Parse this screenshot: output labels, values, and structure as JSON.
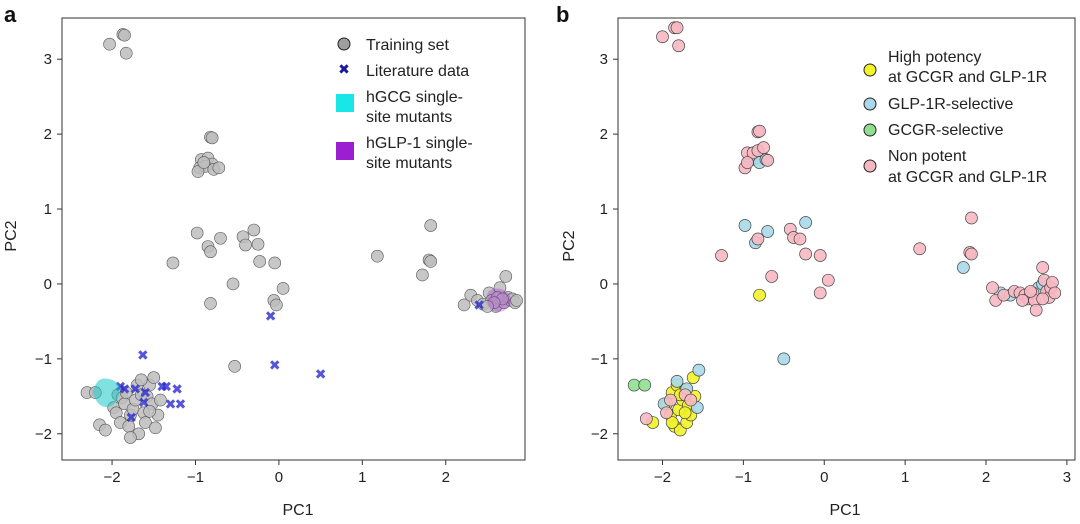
{
  "chart_data": [
    {
      "type": "scatter",
      "panel_label": "a",
      "xlabel": "PC1",
      "ylabel": "PC2",
      "xlim": [
        -2.6,
        2.95
      ],
      "ylim": [
        -2.35,
        3.55
      ],
      "xticks": [
        -2,
        -1,
        0,
        1,
        2
      ],
      "yticks": [
        -2,
        -1,
        0,
        1,
        2,
        3
      ],
      "grid": false,
      "legend_position": "top-right",
      "series": [
        {
          "name": "Training set",
          "marker": "circle",
          "color": "#bdbdbd",
          "points": [
            [
              -2.03,
              3.2
            ],
            [
              -1.87,
              3.33
            ],
            [
              -1.85,
              3.32
            ],
            [
              -1.83,
              3.08
            ],
            [
              -0.82,
              1.96
            ],
            [
              -0.8,
              1.95
            ],
            [
              -0.93,
              1.66
            ],
            [
              -0.85,
              1.68
            ],
            [
              -0.8,
              1.6
            ],
            [
              -0.95,
              1.55
            ],
            [
              -0.88,
              1.57
            ],
            [
              -0.78,
              1.53
            ],
            [
              -0.72,
              1.55
            ],
            [
              -0.97,
              1.5
            ],
            [
              -0.9,
              1.62
            ],
            [
              -1.27,
              0.28
            ],
            [
              -0.98,
              0.68
            ],
            [
              -0.85,
              0.5
            ],
            [
              -0.82,
              0.43
            ],
            [
              -0.7,
              0.61
            ],
            [
              -0.55,
              0.0
            ],
            [
              -0.43,
              0.63
            ],
            [
              -0.4,
              0.52
            ],
            [
              -0.3,
              0.72
            ],
            [
              -0.25,
              0.53
            ],
            [
              -0.23,
              0.3
            ],
            [
              -0.05,
              0.28
            ],
            [
              -0.06,
              -0.22
            ],
            [
              -0.03,
              -0.28
            ],
            [
              0.05,
              -0.06
            ],
            [
              -0.82,
              -0.26
            ],
            [
              -0.53,
              -1.1
            ],
            [
              1.18,
              0.37
            ],
            [
              1.72,
              0.12
            ],
            [
              1.82,
              0.78
            ],
            [
              1.8,
              0.32
            ],
            [
              1.82,
              0.3
            ],
            [
              2.22,
              -0.28
            ],
            [
              2.3,
              -0.15
            ],
            [
              2.38,
              -0.22
            ],
            [
              2.45,
              -0.27
            ],
            [
              2.52,
              -0.12
            ],
            [
              2.55,
              -0.22
            ],
            [
              2.6,
              -0.3
            ],
            [
              2.65,
              -0.05
            ],
            [
              2.7,
              -0.25
            ],
            [
              2.72,
              0.1
            ],
            [
              2.75,
              -0.18
            ],
            [
              2.78,
              -0.22
            ],
            [
              2.8,
              -0.2
            ],
            [
              2.83,
              -0.25
            ],
            [
              2.85,
              -0.22
            ],
            [
              2.62,
              -0.18
            ],
            [
              2.68,
              -0.2
            ],
            [
              2.58,
              -0.25
            ],
            [
              2.5,
              -0.3
            ],
            [
              -2.3,
              -1.45
            ],
            [
              -2.2,
              -1.45
            ],
            [
              -2.15,
              -1.88
            ],
            [
              -2.08,
              -1.95
            ],
            [
              -1.98,
              -1.65
            ],
            [
              -1.95,
              -1.72
            ],
            [
              -1.93,
              -1.48
            ],
            [
              -1.9,
              -1.85
            ],
            [
              -1.88,
              -1.52
            ],
            [
              -1.85,
              -1.6
            ],
            [
              -1.83,
              -1.45
            ],
            [
              -1.8,
              -1.9
            ],
            [
              -1.78,
              -1.75
            ],
            [
              -1.75,
              -1.67
            ],
            [
              -1.72,
              -1.55
            ],
            [
              -1.7,
              -1.35
            ],
            [
              -1.68,
              -2.0
            ],
            [
              -1.65,
              -1.48
            ],
            [
              -1.62,
              -1.72
            ],
            [
              -1.6,
              -1.85
            ],
            [
              -1.58,
              -1.5
            ],
            [
              -1.55,
              -1.35
            ],
            [
              -1.52,
              -1.6
            ],
            [
              -1.5,
              -1.25
            ],
            [
              -1.48,
              -1.92
            ],
            [
              -1.45,
              -1.75
            ],
            [
              -1.42,
              -1.55
            ],
            [
              -1.78,
              -2.05
            ],
            [
              -1.65,
              -1.28
            ],
            [
              -1.55,
              -1.7
            ]
          ]
        },
        {
          "name": "Literature data",
          "marker": "x",
          "color": "#2a2ad0",
          "points": [
            [
              -1.63,
              -0.95
            ],
            [
              -1.9,
              -1.37
            ],
            [
              -1.85,
              -1.4
            ],
            [
              -1.77,
              -1.78
            ],
            [
              -1.72,
              -1.4
            ],
            [
              -1.62,
              -1.58
            ],
            [
              -1.6,
              -1.45
            ],
            [
              -1.4,
              -1.37
            ],
            [
              -1.35,
              -1.37
            ],
            [
              -1.3,
              -1.6
            ],
            [
              -1.22,
              -1.4
            ],
            [
              -1.18,
              -1.6
            ],
            [
              -0.1,
              -0.43
            ],
            [
              -0.05,
              -1.08
            ],
            [
              0.5,
              -1.2
            ],
            [
              2.4,
              -0.28
            ]
          ]
        },
        {
          "name": "hGCG single-site mutants",
          "marker": "square",
          "color": "#19e6e6",
          "points": []
        },
        {
          "name": "hGLP-1 single-site mutants",
          "marker": "square",
          "color": "#9b1fd1",
          "points": []
        }
      ],
      "legend_lines": {
        "training": [
          "Training set"
        ],
        "literature": [
          "Literature data"
        ],
        "hgcg": [
          "hGCG single-",
          "site mutants"
        ],
        "hglp": [
          "hGLP-1 single-",
          "site mutants"
        ]
      }
    },
    {
      "type": "scatter",
      "panel_label": "b",
      "xlabel": "PC1",
      "ylabel": "PC2",
      "xlim": [
        -2.55,
        3.1
      ],
      "ylim": [
        -2.35,
        3.55
      ],
      "xticks": [
        -2,
        -1,
        0,
        1,
        2,
        3
      ],
      "yticks": [
        -2,
        -1,
        0,
        1,
        2,
        3
      ],
      "grid": false,
      "legend_position": "top-right",
      "series": [
        {
          "name": "High potency at GCGR and GLP-1R",
          "legend_lines": [
            "High potency",
            "at GCGR and GLP-1R"
          ],
          "marker": "circle",
          "color": "#f3f32a",
          "points": [
            [
              -0.8,
              -0.15
            ],
            [
              -2.12,
              -1.85
            ],
            [
              -1.95,
              -1.6
            ],
            [
              -1.9,
              -1.75
            ],
            [
              -1.88,
              -1.45
            ],
            [
              -1.85,
              -1.9
            ],
            [
              -1.82,
              -1.35
            ],
            [
              -1.8,
              -1.68
            ],
            [
              -1.78,
              -1.95
            ],
            [
              -1.75,
              -1.55
            ],
            [
              -1.72,
              -1.42
            ],
            [
              -1.7,
              -1.85
            ],
            [
              -1.68,
              -1.62
            ],
            [
              -1.65,
              -1.75
            ],
            [
              -1.62,
              -1.25
            ],
            [
              -1.6,
              -1.5
            ],
            [
              -1.88,
              -1.85
            ],
            [
              -1.72,
              -1.72
            ],
            [
              -1.78,
              -1.48
            ]
          ]
        },
        {
          "name": "GLP-1R-selective",
          "legend_lines": [
            "GLP-1R-selective"
          ],
          "marker": "circle",
          "color": "#a8d8ea",
          "points": [
            [
              -0.98,
              0.78
            ],
            [
              -0.85,
              0.55
            ],
            [
              -0.7,
              0.7
            ],
            [
              -0.23,
              0.82
            ],
            [
              -0.5,
              -1.0
            ],
            [
              -0.92,
              1.65
            ],
            [
              -0.85,
              1.68
            ],
            [
              -0.8,
              1.62
            ],
            [
              -0.72,
              1.66
            ],
            [
              1.72,
              0.22
            ],
            [
              2.18,
              -0.12
            ],
            [
              2.3,
              -0.15
            ],
            [
              2.65,
              -0.05
            ],
            [
              2.7,
              0.0
            ],
            [
              -1.98,
              -1.6
            ],
            [
              -1.7,
              -1.4
            ],
            [
              -1.57,
              -1.65
            ],
            [
              -1.55,
              -1.15
            ],
            [
              -1.82,
              -1.3
            ]
          ]
        },
        {
          "name": "GCGR-selective",
          "legend_lines": [
            "GCGR-selective"
          ],
          "marker": "circle",
          "color": "#8fe08f",
          "points": [
            [
              -2.35,
              -1.35
            ],
            [
              -2.22,
              -1.35
            ]
          ]
        },
        {
          "name": "Non potent at GCGR and GLP-1R",
          "legend_lines": [
            "Non potent",
            "at GCGR and GLP-1R"
          ],
          "marker": "circle",
          "color": "#f7b8c2",
          "points": [
            [
              -2.0,
              3.3
            ],
            [
              -1.85,
              3.42
            ],
            [
              -1.82,
              3.42
            ],
            [
              -1.8,
              3.18
            ],
            [
              -0.82,
              2.03
            ],
            [
              -0.8,
              2.04
            ],
            [
              -0.95,
              1.75
            ],
            [
              -0.98,
              1.55
            ],
            [
              -0.88,
              1.75
            ],
            [
              -0.82,
              1.78
            ],
            [
              -0.75,
              1.82
            ],
            [
              -0.7,
              1.65
            ],
            [
              -0.95,
              1.62
            ],
            [
              -1.27,
              0.38
            ],
            [
              -0.82,
              0.6
            ],
            [
              -0.65,
              0.1
            ],
            [
              -0.42,
              0.73
            ],
            [
              -0.38,
              0.62
            ],
            [
              -0.3,
              0.6
            ],
            [
              -0.23,
              0.4
            ],
            [
              -0.05,
              0.38
            ],
            [
              -0.05,
              -0.12
            ],
            [
              0.05,
              0.05
            ],
            [
              1.18,
              0.47
            ],
            [
              1.82,
              0.88
            ],
            [
              1.8,
              0.42
            ],
            [
              1.82,
              0.4
            ],
            [
              2.08,
              -0.05
            ],
            [
              2.12,
              -0.22
            ],
            [
              2.22,
              -0.15
            ],
            [
              2.35,
              -0.1
            ],
            [
              2.42,
              -0.12
            ],
            [
              2.48,
              -0.15
            ],
            [
              2.52,
              -0.2
            ],
            [
              2.58,
              -0.12
            ],
            [
              2.6,
              -0.22
            ],
            [
              2.62,
              -0.35
            ],
            [
              2.7,
              0.22
            ],
            [
              2.72,
              0.05
            ],
            [
              2.75,
              -0.1
            ],
            [
              2.78,
              -0.18
            ],
            [
              2.8,
              -0.05
            ],
            [
              2.82,
              0.02
            ],
            [
              2.85,
              -0.12
            ],
            [
              2.7,
              -0.2
            ],
            [
              2.55,
              -0.1
            ],
            [
              2.45,
              -0.22
            ],
            [
              -2.2,
              -1.8
            ],
            [
              -1.9,
              -1.55
            ],
            [
              -1.72,
              -1.48
            ],
            [
              -1.65,
              -1.55
            ],
            [
              -1.95,
              -1.72
            ]
          ]
        }
      ]
    }
  ]
}
